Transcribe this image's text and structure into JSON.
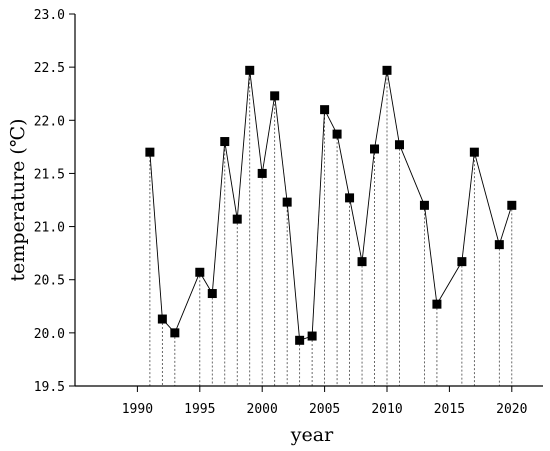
{
  "chart_data": {
    "type": "line",
    "title": "",
    "xlabel": "year",
    "ylabel": "temperature (℃)",
    "xlim": [
      1985,
      2022.5
    ],
    "ylim": [
      19.5,
      23.0
    ],
    "xticks": [
      1990,
      1995,
      2000,
      2005,
      2010,
      2015,
      2020
    ],
    "yticks": [
      19.5,
      20.0,
      20.5,
      21.0,
      21.5,
      22.0,
      22.5,
      23.0
    ],
    "ytick_labels": [
      "19.5",
      "20.0",
      "20.5",
      "21.0",
      "21.5",
      "22.0",
      "22.5",
      "23.0"
    ],
    "grid": false,
    "legend": "none",
    "drop_lines": true,
    "marker": "square",
    "line_color": "#000000",
    "series": [
      {
        "x": [
          1991,
          1992,
          1993,
          1995,
          1996,
          1997,
          1998,
          1999,
          2000,
          2001,
          2002,
          2003,
          2004,
          2005,
          2006,
          2007,
          2008,
          2009,
          2010,
          2011,
          2013,
          2014,
          2016,
          2017,
          2019,
          2020
        ],
        "y": [
          21.7,
          20.13,
          20.0,
          20.57,
          20.37,
          21.8,
          21.07,
          22.47,
          21.5,
          22.23,
          21.23,
          19.93,
          19.97,
          22.1,
          21.87,
          21.27,
          20.67,
          21.73,
          22.47,
          21.77,
          21.2,
          20.27,
          20.67,
          21.7,
          20.83,
          21.2
        ]
      }
    ]
  }
}
